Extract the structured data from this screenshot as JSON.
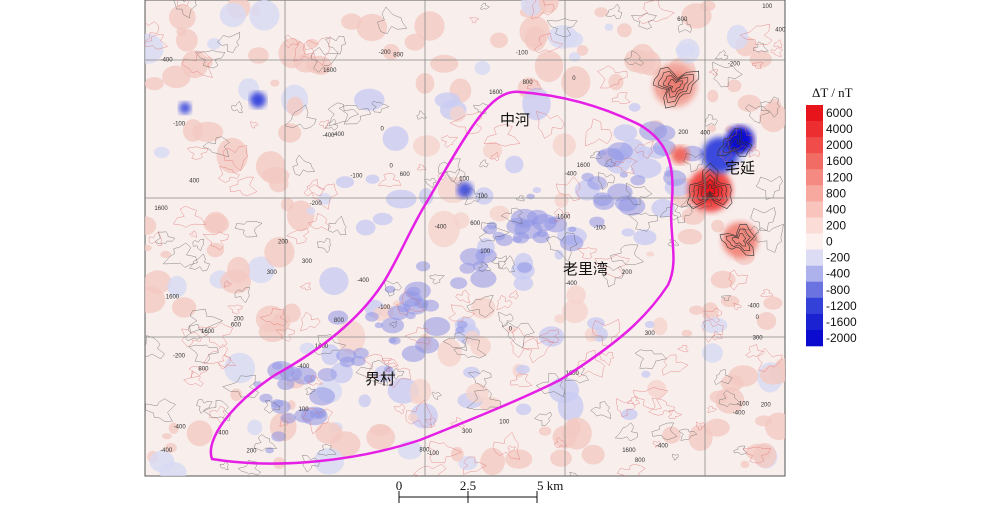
{
  "map": {
    "places": [
      {
        "id": "zhonghe",
        "label": "中河"
      },
      {
        "id": "zhaiyan",
        "label": "宅延"
      },
      {
        "id": "laoliwan",
        "label": "老里湾"
      },
      {
        "id": "jiecun",
        "label": "界村"
      }
    ],
    "contour_labels": [
      "300",
      "200",
      "100",
      "400",
      "0",
      "-100",
      "-200",
      "600",
      "800",
      "-400",
      "1600"
    ]
  },
  "legend": {
    "title": "ΔT / nT",
    "entries": [
      {
        "label": "6000",
        "color": "#e8141c"
      },
      {
        "label": "4000",
        "color": "#ec2e30"
      },
      {
        "label": "2000",
        "color": "#ef4c4a"
      },
      {
        "label": "1600",
        "color": "#f26c66"
      },
      {
        "label": "1200",
        "color": "#f58a82"
      },
      {
        "label": "800",
        "color": "#f7a89f"
      },
      {
        "label": "400",
        "color": "#f9c4bc"
      },
      {
        "label": "200",
        "color": "#fbdcd6"
      },
      {
        "label": "0",
        "color": "#fdf1ef"
      },
      {
        "label": "-200",
        "color": "#dcdcf4"
      },
      {
        "label": "-400",
        "color": "#aeb2ec"
      },
      {
        "label": "-800",
        "color": "#6a73e0"
      },
      {
        "label": "-1200",
        "color": "#3341d8"
      },
      {
        "label": "-1600",
        "color": "#1b22d2"
      },
      {
        "label": "-2000",
        "color": "#0b0bd0"
      }
    ]
  },
  "scale": {
    "ticks": [
      "0",
      "2.5",
      "5 km"
    ]
  },
  "colors": {
    "boundary": "#e61fe6",
    "positive": "#f2b8b0",
    "negative": "#8f96e6",
    "strong_positive": "#e8141c",
    "strong_negative": "#0b0bd0"
  }
}
